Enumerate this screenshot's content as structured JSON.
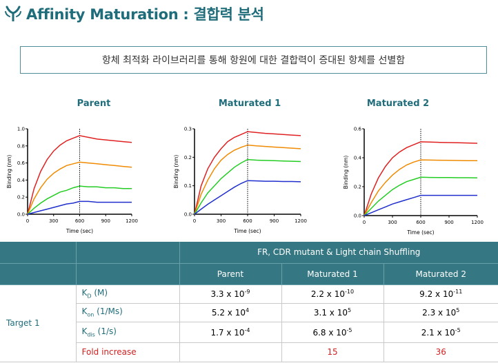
{
  "header": {
    "title": "Affinity Maturation : 결합력 분석",
    "subtitle": "항체 최적화 라이브러리를 통해 항원에 대한 결합력이 증대된 항체를 선별함"
  },
  "colors": {
    "brand": "#1f6c7a",
    "table_header": "#357883",
    "highlight_red": "#d21f1f",
    "series": [
      "#e02020",
      "#f08a00",
      "#22cc22",
      "#1f2ecc"
    ]
  },
  "chart_data": [
    {
      "type": "line",
      "title": "Parent",
      "xlabel": "Time (sec)",
      "ylabel": "Binding (nm)",
      "xlim": [
        0,
        1200
      ],
      "ylim": [
        0,
        1.0
      ],
      "xticks": [
        "0",
        "300",
        "600",
        "900",
        "1200"
      ],
      "yticks": [
        "0.0",
        "0.2",
        "0.4",
        "0.6",
        "0.8",
        "1.0"
      ],
      "vline_x": 600,
      "series": [
        {
          "color": "#e02020",
          "x": [
            0,
            75,
            150,
            225,
            300,
            375,
            450,
            525,
            600,
            700,
            800,
            900,
            1000,
            1100,
            1200
          ],
          "values": [
            0,
            0.3,
            0.5,
            0.64,
            0.74,
            0.81,
            0.86,
            0.89,
            0.92,
            0.9,
            0.88,
            0.87,
            0.86,
            0.85,
            0.84
          ]
        },
        {
          "color": "#f08a00",
          "x": [
            0,
            75,
            150,
            225,
            300,
            375,
            450,
            525,
            600,
            700,
            800,
            900,
            1000,
            1100,
            1200
          ],
          "values": [
            0,
            0.18,
            0.31,
            0.41,
            0.48,
            0.53,
            0.57,
            0.59,
            0.61,
            0.6,
            0.59,
            0.58,
            0.57,
            0.56,
            0.55
          ]
        },
        {
          "color": "#22cc22",
          "x": [
            0,
            75,
            150,
            225,
            300,
            375,
            450,
            525,
            600,
            700,
            800,
            900,
            1000,
            1100,
            1200
          ],
          "values": [
            0,
            0.07,
            0.13,
            0.18,
            0.22,
            0.26,
            0.28,
            0.31,
            0.33,
            0.32,
            0.32,
            0.31,
            0.31,
            0.3,
            0.3
          ]
        },
        {
          "color": "#1f2ecc",
          "x": [
            0,
            75,
            150,
            225,
            300,
            375,
            450,
            525,
            600,
            700,
            800,
            900,
            1000,
            1100,
            1200
          ],
          "values": [
            0,
            0.02,
            0.04,
            0.06,
            0.08,
            0.1,
            0.12,
            0.13,
            0.15,
            0.15,
            0.14,
            0.14,
            0.14,
            0.14,
            0.14
          ]
        }
      ]
    },
    {
      "type": "line",
      "title": "Maturated 1",
      "xlabel": "Time (sec)",
      "ylabel": "Binding (nm)",
      "xlim": [
        0,
        1200
      ],
      "ylim": [
        0,
        0.3
      ],
      "xticks": [
        "0",
        "300",
        "600",
        "900",
        "1200"
      ],
      "yticks": [
        "0.0",
        "0.1",
        "0.2",
        "0.3"
      ],
      "vline_x": 600,
      "series": [
        {
          "color": "#e02020",
          "x": [
            0,
            75,
            150,
            225,
            300,
            375,
            450,
            525,
            600,
            700,
            800,
            900,
            1000,
            1100,
            1200
          ],
          "values": [
            0,
            0.1,
            0.16,
            0.2,
            0.23,
            0.255,
            0.27,
            0.28,
            0.29,
            0.287,
            0.284,
            0.282,
            0.28,
            0.278,
            0.276
          ]
        },
        {
          "color": "#f08a00",
          "x": [
            0,
            75,
            150,
            225,
            300,
            375,
            450,
            525,
            600,
            700,
            800,
            900,
            1000,
            1100,
            1200
          ],
          "values": [
            0,
            0.07,
            0.12,
            0.16,
            0.19,
            0.21,
            0.225,
            0.235,
            0.243,
            0.24,
            0.238,
            0.236,
            0.234,
            0.232,
            0.23
          ]
        },
        {
          "color": "#22cc22",
          "x": [
            0,
            75,
            150,
            225,
            300,
            375,
            450,
            525,
            600,
            700,
            800,
            900,
            1000,
            1100,
            1200
          ],
          "values": [
            0,
            0.04,
            0.075,
            0.1,
            0.125,
            0.145,
            0.165,
            0.18,
            0.192,
            0.19,
            0.189,
            0.188,
            0.187,
            0.186,
            0.185
          ]
        },
        {
          "color": "#1f2ecc",
          "x": [
            0,
            75,
            150,
            225,
            300,
            375,
            450,
            525,
            600,
            700,
            800,
            900,
            1000,
            1100,
            1200
          ],
          "values": [
            0,
            0.018,
            0.035,
            0.05,
            0.065,
            0.08,
            0.095,
            0.108,
            0.118,
            0.117,
            0.116,
            0.116,
            0.115,
            0.115,
            0.114
          ]
        }
      ]
    },
    {
      "type": "line",
      "title": "Maturated 2",
      "xlabel": "Time (sec)",
      "ylabel": "Binding (nm)",
      "xlim": [
        0,
        1200
      ],
      "ylim": [
        0,
        0.6
      ],
      "xticks": [
        "0",
        "300",
        "600",
        "900",
        "1200"
      ],
      "yticks": [
        "0.0",
        "0.2",
        "0.4",
        "0.6"
      ],
      "vline_x": 600,
      "series": [
        {
          "color": "#e02020",
          "x": [
            0,
            75,
            150,
            225,
            300,
            375,
            450,
            525,
            600,
            700,
            800,
            900,
            1000,
            1100,
            1200
          ],
          "values": [
            0,
            0.15,
            0.26,
            0.34,
            0.4,
            0.44,
            0.47,
            0.49,
            0.51,
            0.508,
            0.506,
            0.505,
            0.504,
            0.502,
            0.5
          ]
        },
        {
          "color": "#f08a00",
          "x": [
            0,
            75,
            150,
            225,
            300,
            375,
            450,
            525,
            600,
            700,
            800,
            900,
            1000,
            1100,
            1200
          ],
          "values": [
            0,
            0.09,
            0.17,
            0.23,
            0.28,
            0.32,
            0.35,
            0.37,
            0.385,
            0.384,
            0.383,
            0.382,
            0.381,
            0.38,
            0.38
          ]
        },
        {
          "color": "#22cc22",
          "x": [
            0,
            75,
            150,
            225,
            300,
            375,
            450,
            525,
            600,
            700,
            800,
            900,
            1000,
            1100,
            1200
          ],
          "values": [
            0,
            0.05,
            0.1,
            0.14,
            0.18,
            0.21,
            0.235,
            0.25,
            0.265,
            0.264,
            0.263,
            0.263,
            0.262,
            0.262,
            0.261
          ]
        },
        {
          "color": "#1f2ecc",
          "x": [
            0,
            75,
            150,
            225,
            300,
            375,
            450,
            525,
            600,
            700,
            800,
            900,
            1000,
            1100,
            1200
          ],
          "values": [
            0,
            0.02,
            0.04,
            0.06,
            0.08,
            0.095,
            0.11,
            0.125,
            0.14,
            0.14,
            0.14,
            0.14,
            0.14,
            0.14,
            0.14
          ]
        }
      ]
    }
  ],
  "table": {
    "group_header": "FR, CDR mutant & Light chain Shuffling",
    "columns": [
      "Parent",
      "Maturated 1",
      "Maturated 2"
    ],
    "target_label": "Target 1",
    "rows": [
      {
        "label_main": "K",
        "label_sub": "D",
        "label_rest": " (M)",
        "values": [
          {
            "base": "3.3 x 10",
            "exp": "-9"
          },
          {
            "base": "2.2 x 10",
            "exp": "-10"
          },
          {
            "base": "9.2 x 10",
            "exp": "-11"
          }
        ]
      },
      {
        "label_main": "K",
        "label_sub": "on",
        "label_rest": " (1/Ms)",
        "values": [
          {
            "base": "5.2 x 10",
            "exp": "4"
          },
          {
            "base": "3.1 x 10",
            "exp": "5"
          },
          {
            "base": "2.3 x 10",
            "exp": "5"
          }
        ]
      },
      {
        "label_main": "K",
        "label_sub": "dis",
        "label_rest": " (1/s)",
        "values": [
          {
            "base": "1.7 x 10",
            "exp": "-4"
          },
          {
            "base": "6.8 x 10",
            "exp": "-5"
          },
          {
            "base": "2.1 x 10",
            "exp": "-5"
          }
        ]
      }
    ],
    "fold_label": "Fold increase",
    "fold_values": [
      "",
      "15",
      "36"
    ]
  }
}
